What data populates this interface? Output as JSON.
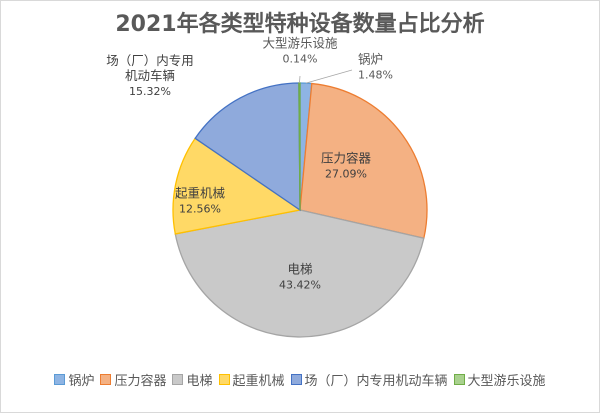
{
  "chart_data": {
    "type": "pie",
    "title": "2021年各类型特种设备数量占比分析",
    "slices": [
      {
        "name": "锅炉",
        "value": 1.48,
        "label": "1.48%",
        "color": "#8eb4e3",
        "stroke": "#5b9bd5"
      },
      {
        "name": "压力容器",
        "value": 27.09,
        "label": "27.09%",
        "color": "#f4b183",
        "stroke": "#ed7d31"
      },
      {
        "name": "电梯",
        "value": 43.42,
        "label": "43.42%",
        "color": "#c9c9c9",
        "stroke": "#a5a5a5"
      },
      {
        "name": "起重机械",
        "value": 12.56,
        "label": "12.56%",
        "color": "#ffd966",
        "stroke": "#ffc000"
      },
      {
        "name": "场（厂）内专用机动车辆",
        "value": 15.32,
        "label": "15.32%",
        "color": "#8faadc",
        "stroke": "#4472c4"
      },
      {
        "name": "大型游乐设施",
        "value": 0.14,
        "label": "0.14%",
        "color": "#a9d18e",
        "stroke": "#70ad47"
      }
    ],
    "legend_position": "bottom"
  }
}
